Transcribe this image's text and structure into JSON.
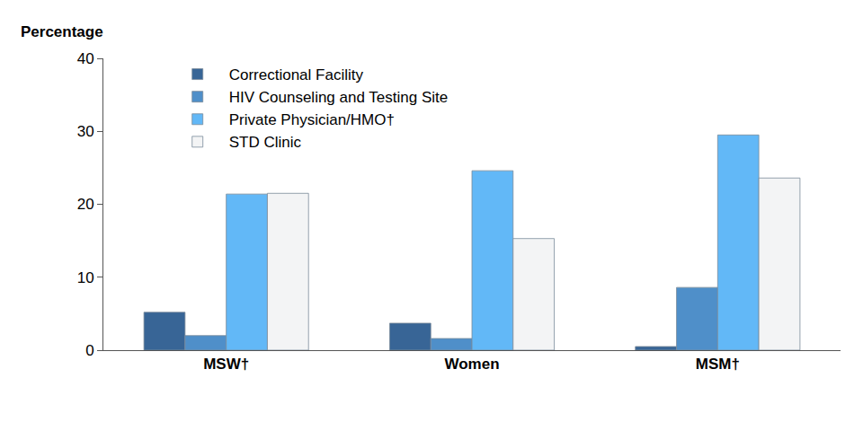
{
  "chart_data": {
    "type": "bar",
    "y_label": "Percentage",
    "categories": [
      "MSW†",
      "Women",
      "MSM†"
    ],
    "series": [
      {
        "name": "Correctional Facility",
        "color": "#386596",
        "values": [
          5.2,
          3.7,
          0.5
        ]
      },
      {
        "name": "HIV Counseling and Testing Site",
        "color": "#4f8fc9",
        "values": [
          2.0,
          1.6,
          8.6
        ]
      },
      {
        "name": "Private Physician/HMO†",
        "color": "#62b8f7",
        "values": [
          21.4,
          24.6,
          29.5
        ]
      },
      {
        "name": "STD Clinic",
        "color": "#f3f4f5",
        "values": [
          21.5,
          15.3,
          23.6
        ]
      }
    ],
    "ylim": [
      0,
      40
    ],
    "yticks": [
      0,
      10,
      20,
      30,
      40
    ],
    "grid": false,
    "legend": "upper left"
  }
}
